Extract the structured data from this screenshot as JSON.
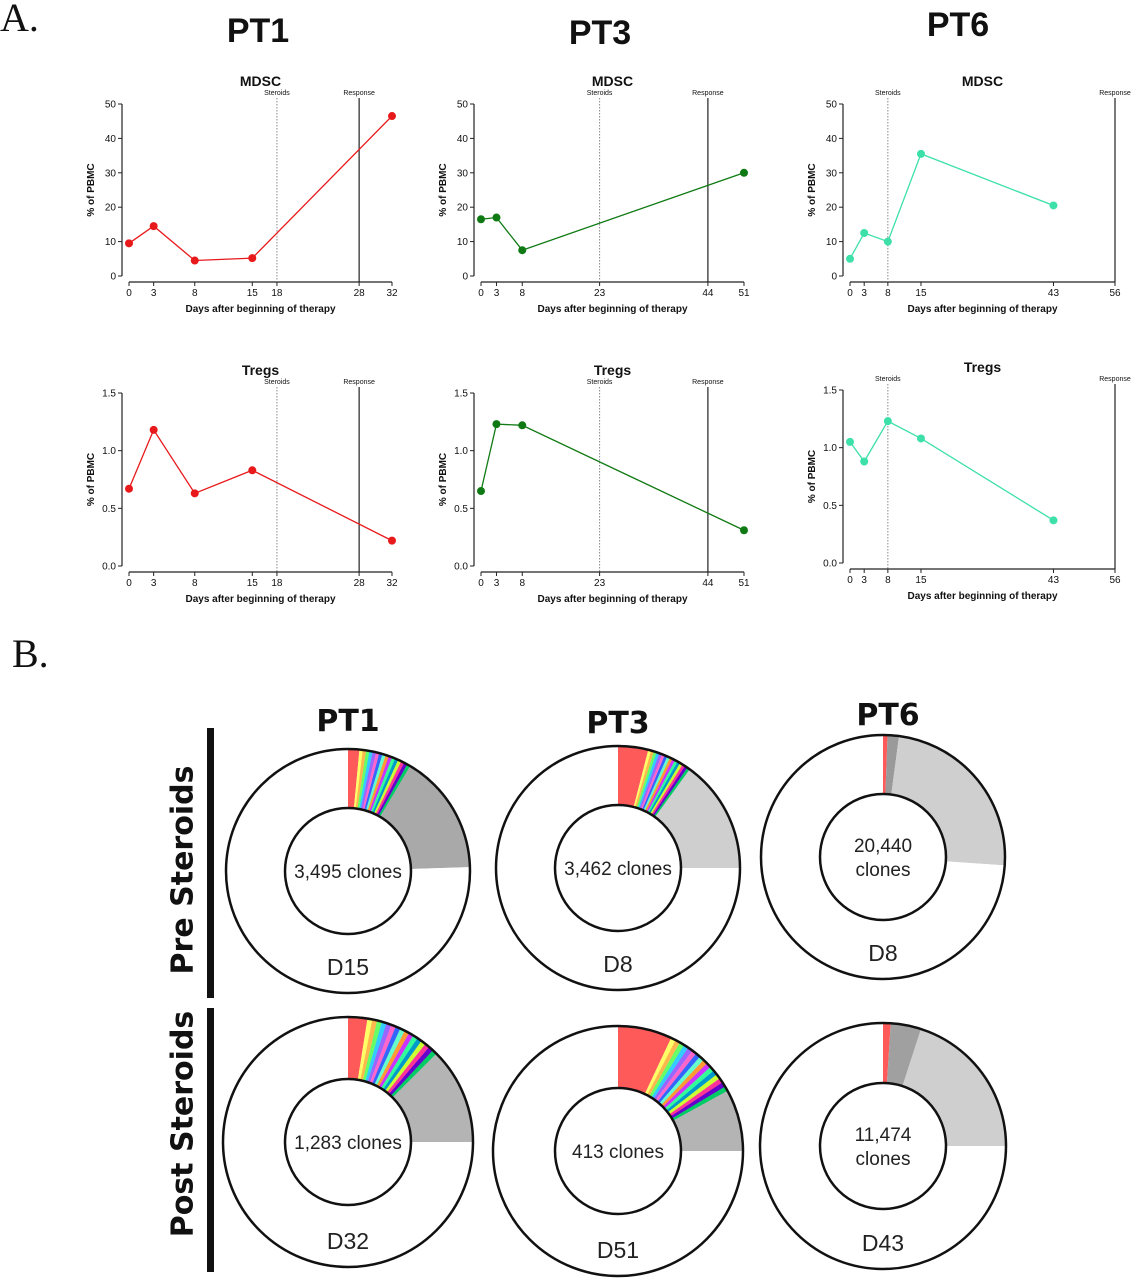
{
  "figure": {
    "panel_a_label": "A.",
    "panel_b_label": "B.",
    "patients": [
      "PT1",
      "PT3",
      "PT6"
    ],
    "x_axis_label": "Days after beginning of therapy",
    "y_axis_label": "% of PBMC",
    "event_labels": {
      "steroids": "Steroids",
      "response": "Response"
    }
  },
  "chart_data": [
    {
      "type": "line",
      "patient": "PT1",
      "title": "MDSC",
      "xlabel": "Days after beginning of therapy",
      "ylabel": "% of PBMC",
      "color": "#e8191b",
      "ylim": [
        0,
        50
      ],
      "yticks": [
        "0",
        "10",
        "20",
        "30",
        "40",
        "50"
      ],
      "xlim": [
        0,
        32
      ],
      "xticks": [
        0,
        3,
        8,
        15,
        18,
        28,
        32
      ],
      "x": [
        0,
        3,
        8,
        15,
        32
      ],
      "y": [
        9.5,
        14.5,
        4.5,
        5.2,
        46.5
      ],
      "steroids_day": 18,
      "response_day": 28
    },
    {
      "type": "line",
      "patient": "PT3",
      "title": "MDSC",
      "xlabel": "Days after beginning of therapy",
      "ylabel": "% of PBMC",
      "color": "#0f7a13",
      "ylim": [
        0,
        50
      ],
      "yticks": [
        "0",
        "10",
        "20",
        "30",
        "40",
        "50"
      ],
      "xlim": [
        0,
        51
      ],
      "xticks": [
        0,
        3,
        8,
        23,
        44,
        51
      ],
      "x": [
        0,
        3,
        8,
        51
      ],
      "y": [
        16.5,
        17,
        7.5,
        30
      ],
      "steroids_day": 23,
      "response_day": 44
    },
    {
      "type": "line",
      "patient": "PT6",
      "title": "MDSC",
      "xlabel": "Days after beginning of therapy",
      "ylabel": "% of PBMC",
      "color": "#3de0a8",
      "ylim": [
        0,
        50
      ],
      "yticks": [
        "0",
        "10",
        "20",
        "30",
        "40",
        "50"
      ],
      "xlim": [
        0,
        56
      ],
      "xticks": [
        0,
        3,
        8,
        15,
        43,
        56
      ],
      "x": [
        0,
        3,
        8,
        15,
        43
      ],
      "y": [
        5,
        12.5,
        10,
        35.5,
        20.5
      ],
      "steroids_day": 8,
      "response_day": 56
    },
    {
      "type": "line",
      "patient": "PT1",
      "title": "Tregs",
      "xlabel": "Days after beginning of therapy",
      "ylabel": "% of PBMC",
      "color": "#e8191b",
      "ylim": [
        0,
        1.5
      ],
      "yticks": [
        "0.0",
        "0.5",
        "1.0",
        "1.5"
      ],
      "xlim": [
        0,
        32
      ],
      "xticks": [
        0,
        3,
        8,
        15,
        18,
        28,
        32
      ],
      "x": [
        0,
        3,
        8,
        15,
        32
      ],
      "y": [
        0.67,
        1.18,
        0.63,
        0.83,
        0.22
      ],
      "steroids_day": 18,
      "response_day": 28
    },
    {
      "type": "line",
      "patient": "PT3",
      "title": "Tregs",
      "xlabel": "Days after beginning of therapy",
      "ylabel": "% of PBMC",
      "color": "#0f7a13",
      "ylim": [
        0,
        1.5
      ],
      "yticks": [
        "0.0",
        "0.5",
        "1.0",
        "1.5"
      ],
      "xlim": [
        0,
        51
      ],
      "xticks": [
        0,
        3,
        8,
        23,
        44,
        51
      ],
      "x": [
        0,
        3,
        8,
        51
      ],
      "y": [
        0.65,
        1.23,
        1.22,
        0.31
      ],
      "steroids_day": 23,
      "response_day": 44
    },
    {
      "type": "line",
      "patient": "PT6",
      "title": "Tregs",
      "xlabel": "Days after beginning of therapy",
      "ylabel": "% of PBMC",
      "color": "#3de0a8",
      "ylim": [
        0,
        1.5
      ],
      "yticks": [
        "0.0",
        "0.5",
        "1.0",
        "1.5"
      ],
      "xlim": [
        0,
        56
      ],
      "xticks": [
        0,
        3,
        8,
        15,
        43,
        56
      ],
      "x": [
        0,
        3,
        8,
        15,
        43
      ],
      "y": [
        1.05,
        0.88,
        1.23,
        1.08,
        0.37
      ],
      "steroids_day": 8,
      "response_day": 56
    },
    {
      "type": "pie",
      "patient": "PT1",
      "row": "Pre Steroids",
      "day_label": "D15",
      "center_lines": [
        "3,495 clones"
      ],
      "slices": [
        {
          "fraction": 0.015,
          "color": "#ff5a5a"
        },
        {
          "fraction": 0.07,
          "color": "rainbow"
        },
        {
          "fraction": 0.16,
          "color": "#a9a9a9"
        },
        {
          "fraction": 0.755,
          "color": "#ffffff"
        }
      ]
    },
    {
      "type": "pie",
      "patient": "PT3",
      "row": "Pre Steroids",
      "day_label": "D8",
      "center_lines": [
        "3,462 clones"
      ],
      "slices": [
        {
          "fraction": 0.04,
          "color": "#ff5a5a"
        },
        {
          "fraction": 0.06,
          "color": "rainbow"
        },
        {
          "fraction": 0.15,
          "color": "#cfcfcf"
        },
        {
          "fraction": 0.75,
          "color": "#ffffff"
        }
      ]
    },
    {
      "type": "pie",
      "patient": "PT6",
      "row": "Pre Steroids",
      "day_label": "D8",
      "center_lines": [
        "20,440",
        "clones"
      ],
      "slices": [
        {
          "fraction": 0.006,
          "color": "#ff5a5a"
        },
        {
          "fraction": 0.015,
          "color": "#9a9a9a"
        },
        {
          "fraction": 0.24,
          "color": "#cfcfcf"
        },
        {
          "fraction": 0.739,
          "color": "#ffffff"
        }
      ]
    },
    {
      "type": "pie",
      "patient": "PT1",
      "row": "Post Steroids",
      "day_label": "D32",
      "center_lines": [
        "1,283 clones"
      ],
      "slices": [
        {
          "fraction": 0.025,
          "color": "#ff5a5a"
        },
        {
          "fraction": 0.1,
          "color": "rainbow"
        },
        {
          "fraction": 0.125,
          "color": "#b4b4b4"
        },
        {
          "fraction": 0.75,
          "color": "#ffffff"
        }
      ]
    },
    {
      "type": "pie",
      "patient": "PT3",
      "row": "Post Steroids",
      "day_label": "D51",
      "center_lines": [
        "413 clones"
      ],
      "slices": [
        {
          "fraction": 0.07,
          "color": "#ff5a5a"
        },
        {
          "fraction": 0.1,
          "color": "rainbow"
        },
        {
          "fraction": 0.08,
          "color": "#b4b4b4"
        },
        {
          "fraction": 0.75,
          "color": "#ffffff"
        }
      ]
    },
    {
      "type": "pie",
      "patient": "PT6",
      "row": "Post Steroids",
      "day_label": "D43",
      "center_lines": [
        "11,474",
        "clones"
      ],
      "slices": [
        {
          "fraction": 0.01,
          "color": "#ff5a5a"
        },
        {
          "fraction": 0.04,
          "color": "#a0a0a0"
        },
        {
          "fraction": 0.2,
          "color": "#cfcfcf"
        },
        {
          "fraction": 0.75,
          "color": "#ffffff"
        }
      ]
    }
  ],
  "donut_rows": [
    "Pre Steroids",
    "Post Steroids"
  ]
}
